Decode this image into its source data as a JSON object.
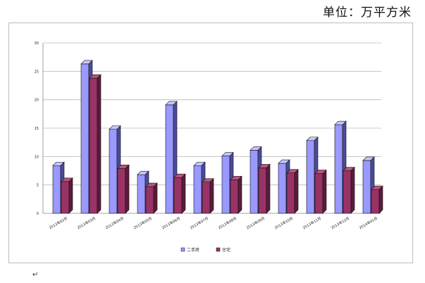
{
  "header": {
    "unit": "单位：万平方米"
  },
  "paragraph_mark": "↵",
  "colors": {
    "series_a": "#9999ff",
    "series_a_top": "#c6c6ff",
    "series_a_side": "#4b4b9a",
    "series_b": "#993366",
    "series_b_top": "#b8557f",
    "series_b_side": "#5a1c3c",
    "grid": "#bbbbbb",
    "axis": "#888888"
  },
  "chart_data": {
    "type": "bar",
    "title": "",
    "xlabel": "",
    "ylabel": "",
    "ylim": [
      0,
      30
    ],
    "yticks": [
      0,
      5,
      10,
      15,
      20,
      25,
      30
    ],
    "grid": true,
    "legend_position": "bottom-center",
    "categories": [
      "2013年02月",
      "2013年03月",
      "2013年04月",
      "2013年05月",
      "2013年06月",
      "2013年07月",
      "2013年08月",
      "2013年09月",
      "2013年10月",
      "2013年11月",
      "2013年12月",
      "2014年01月"
    ],
    "series": [
      {
        "name": "二手房",
        "values": [
          8.4,
          26.3,
          14.8,
          6.8,
          19.1,
          8.4,
          10.1,
          11.1,
          8.8,
          12.8,
          15.6,
          9.3
        ]
      },
      {
        "name": "住宅",
        "values": [
          5.6,
          23.8,
          7.9,
          4.7,
          6.3,
          5.5,
          5.9,
          8.0,
          7.1,
          7.0,
          7.5,
          4.2
        ]
      }
    ]
  }
}
